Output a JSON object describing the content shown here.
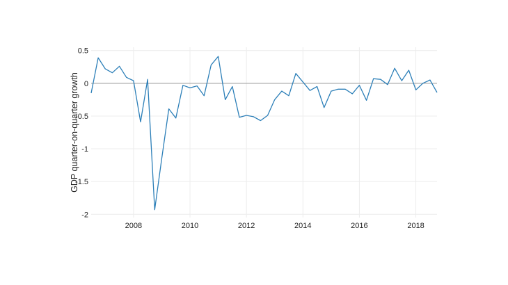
{
  "chart_data": {
    "type": "line",
    "title": "",
    "xlabel": "",
    "ylabel": "GDP quarter-on-quarter growth",
    "xlim": [
      2006.5,
      2018.75
    ],
    "ylim": [
      -2.05,
      0.55
    ],
    "grid": true,
    "zero_line": true,
    "legend": "none",
    "colors": {
      "line": "#2c7fb8",
      "zero_line": "#a0a0a0",
      "grid": "#ececec"
    },
    "y_ticks": [
      {
        "value": 0.5,
        "label": "0.5"
      },
      {
        "value": 0,
        "label": "0"
      },
      {
        "value": -0.5,
        "label": "-0.5"
      },
      {
        "value": -1,
        "label": "-1"
      },
      {
        "value": -1.5,
        "label": "-1.5"
      },
      {
        "value": -2,
        "label": "-2"
      }
    ],
    "x_ticks": [
      {
        "value": 2008,
        "label": "2008"
      },
      {
        "value": 2010,
        "label": "2010"
      },
      {
        "value": 2012,
        "label": "2012"
      },
      {
        "value": 2014,
        "label": "2014"
      },
      {
        "value": 2016,
        "label": "2016"
      },
      {
        "value": 2018,
        "label": "2018"
      }
    ],
    "series": [
      {
        "x": [
          2006.5,
          2006.75,
          2007.0,
          2007.25,
          2007.5,
          2007.75,
          2008.0,
          2008.25,
          2008.5,
          2008.75,
          2009.0,
          2009.25,
          2009.5,
          2009.75,
          2010.0,
          2010.25,
          2010.5,
          2010.75,
          2011.0,
          2011.25,
          2011.5,
          2011.75,
          2012.0,
          2012.25,
          2012.5,
          2012.75,
          2013.0,
          2013.25,
          2013.5,
          2013.75,
          2014.0,
          2014.25,
          2014.5,
          2014.75,
          2015.0,
          2015.25,
          2015.5,
          2015.75,
          2016.0,
          2016.25,
          2016.5,
          2016.75,
          2017.0,
          2017.25,
          2017.5,
          2017.75,
          2018.0,
          2018.25,
          2018.5,
          2018.75
        ],
        "values": [
          -0.15,
          0.39,
          0.22,
          0.16,
          0.26,
          0.09,
          0.04,
          -0.59,
          0.06,
          -1.93,
          -1.15,
          -0.39,
          -0.53,
          -0.03,
          -0.07,
          -0.04,
          -0.19,
          0.28,
          0.41,
          -0.25,
          -0.05,
          -0.52,
          -0.49,
          -0.51,
          -0.57,
          -0.49,
          -0.25,
          -0.12,
          -0.19,
          0.15,
          0.02,
          -0.11,
          -0.05,
          -0.37,
          -0.12,
          -0.09,
          -0.09,
          -0.16,
          -0.03,
          -0.26,
          0.07,
          0.06,
          -0.02,
          0.23,
          0.04,
          0.2,
          -0.1,
          0.0,
          0.05,
          -0.14
        ]
      }
    ]
  }
}
